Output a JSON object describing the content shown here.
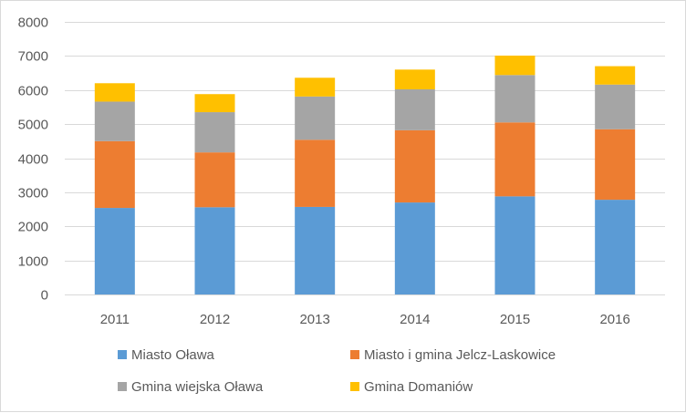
{
  "chart_data": {
    "type": "bar",
    "stacked": true,
    "categories": [
      "2011",
      "2012",
      "2013",
      "2014",
      "2015",
      "2016"
    ],
    "series": [
      {
        "name": "Miasto Oława",
        "color": "#5b9bd5",
        "values": [
          2540,
          2560,
          2570,
          2700,
          2880,
          2780
        ]
      },
      {
        "name": "Miasto i gmina Jelcz-Laskowice",
        "color": "#ed7d31",
        "values": [
          1960,
          1610,
          1970,
          2120,
          2170,
          2070
        ]
      },
      {
        "name": "Gmina wiejska Oława",
        "color": "#a5a5a5",
        "values": [
          1160,
          1180,
          1270,
          1200,
          1390,
          1310
        ]
      },
      {
        "name": "Gmina Domaniów",
        "color": "#ffc000",
        "values": [
          540,
          530,
          550,
          580,
          570,
          540
        ]
      }
    ],
    "ylim": [
      0,
      8000
    ],
    "yticks": [
      "0",
      "1000",
      "2000",
      "3000",
      "4000",
      "5000",
      "6000",
      "7000",
      "8000"
    ],
    "grid": true,
    "legend_position": "bottom",
    "title": "",
    "xlabel": "",
    "ylabel": ""
  }
}
